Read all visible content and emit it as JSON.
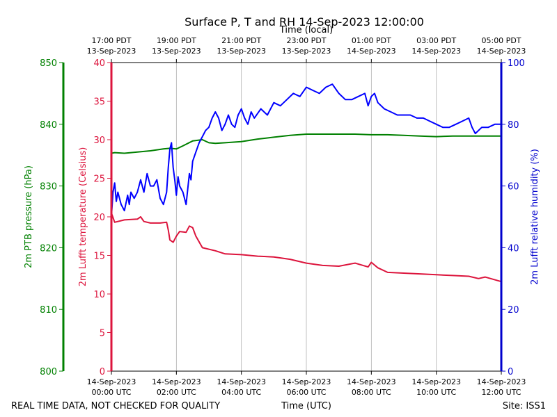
{
  "chart_data": {
    "type": "line",
    "title": "Surface P, T and RH 14-Sep-2023 12:00:00",
    "xlabel_bottom": "Time (UTC)",
    "xlabel_top": "Time (local)",
    "x_range_hours_utc": [
      0,
      12
    ],
    "x_tick_hours": [
      0,
      2,
      4,
      6,
      8,
      10,
      12
    ],
    "bottom_ticks": [
      [
        "14-Sep-2023",
        "00:00 UTC"
      ],
      [
        "14-Sep-2023",
        "02:00 UTC"
      ],
      [
        "14-Sep-2023",
        "04:00 UTC"
      ],
      [
        "14-Sep-2023",
        "06:00 UTC"
      ],
      [
        "14-Sep-2023",
        "08:00 UTC"
      ],
      [
        "14-Sep-2023",
        "10:00 UTC"
      ],
      [
        "14-Sep-2023",
        "12:00 UTC"
      ]
    ],
    "top_ticks": [
      [
        "17:00 PDT",
        "13-Sep-2023"
      ],
      [
        "19:00 PDT",
        "13-Sep-2023"
      ],
      [
        "21:00 PDT",
        "13-Sep-2023"
      ],
      [
        "23:00 PDT",
        "13-Sep-2023"
      ],
      [
        "01:00 PDT",
        "14-Sep-2023"
      ],
      [
        "03:00 PDT",
        "14-Sep-2023"
      ],
      [
        "05:00 PDT",
        "14-Sep-2023"
      ]
    ],
    "axes": {
      "pressure": {
        "label": "2m PTB pressure (hPa)",
        "range": [
          800,
          850
        ],
        "ticks": [
          800,
          810,
          820,
          830,
          840,
          850
        ],
        "color": "#008000"
      },
      "temperature": {
        "label": "2m Lufft temperature (Celsius)",
        "range": [
          0,
          40
        ],
        "ticks": [
          0,
          5,
          10,
          15,
          20,
          25,
          30,
          35,
          40
        ],
        "color": "#dc143c"
      },
      "humidity": {
        "label": "2m Lufft relative humidity (%)",
        "range": [
          0,
          100
        ],
        "ticks": [
          0,
          20,
          40,
          60,
          80,
          100
        ],
        "color": "#0000cd"
      }
    },
    "series": [
      {
        "name": "2m PTB pressure (hPa)",
        "axis": "pressure",
        "color": "#008000",
        "x": [
          0.0,
          0.1,
          0.4,
          0.8,
          1.2,
          1.6,
          1.8,
          2.0,
          2.2,
          2.5,
          2.8,
          3.0,
          3.2,
          3.5,
          4.0,
          4.5,
          5.0,
          5.5,
          6.0,
          6.5,
          7.0,
          7.5,
          8.0,
          8.5,
          9.0,
          9.5,
          10.0,
          10.5,
          11.0,
          11.5,
          12.0
        ],
        "values": [
          835.3,
          835.4,
          835.3,
          835.5,
          835.7,
          836.0,
          836.1,
          836.0,
          836.5,
          837.3,
          837.5,
          837.0,
          836.9,
          837.0,
          837.2,
          837.6,
          837.9,
          838.2,
          838.4,
          838.4,
          838.4,
          838.4,
          838.3,
          838.3,
          838.2,
          838.1,
          838.0,
          838.1,
          838.1,
          838.1,
          838.1
        ]
      },
      {
        "name": "2m Lufft temperature (Celsius)",
        "axis": "temperature",
        "color": "#dc143c",
        "x": [
          0.0,
          0.1,
          0.4,
          0.8,
          0.9,
          1.0,
          1.2,
          1.5,
          1.7,
          1.75,
          1.8,
          1.9,
          2.0,
          2.1,
          2.3,
          2.4,
          2.5,
          2.6,
          2.8,
          3.2,
          3.5,
          4.0,
          4.5,
          5.0,
          5.5,
          6.0,
          6.5,
          7.0,
          7.5,
          7.9,
          8.0,
          8.2,
          8.5,
          9.0,
          9.5,
          10.0,
          10.5,
          11.0,
          11.3,
          11.5,
          12.0
        ],
        "values": [
          20.5,
          19.3,
          19.6,
          19.7,
          20.0,
          19.4,
          19.2,
          19.2,
          19.3,
          18.3,
          17.0,
          16.7,
          17.5,
          18.1,
          18.0,
          18.8,
          18.6,
          17.5,
          16.0,
          15.6,
          15.2,
          15.1,
          14.9,
          14.8,
          14.5,
          14.0,
          13.7,
          13.6,
          14.0,
          13.5,
          14.1,
          13.4,
          12.8,
          12.7,
          12.6,
          12.5,
          12.4,
          12.3,
          12.0,
          12.2,
          11.6
        ]
      },
      {
        "name": "2m Lufft relative humidity (%)",
        "axis": "humidity",
        "color": "#0000ff",
        "x": [
          0.0,
          0.05,
          0.1,
          0.15,
          0.2,
          0.3,
          0.4,
          0.5,
          0.55,
          0.6,
          0.7,
          0.8,
          0.9,
          1.0,
          1.1,
          1.2,
          1.3,
          1.4,
          1.5,
          1.6,
          1.7,
          1.75,
          1.8,
          1.85,
          1.9,
          1.95,
          2.0,
          2.05,
          2.1,
          2.2,
          2.3,
          2.4,
          2.45,
          2.5,
          2.6,
          2.7,
          2.8,
          2.9,
          3.0,
          3.1,
          3.2,
          3.3,
          3.4,
          3.5,
          3.6,
          3.7,
          3.8,
          3.9,
          4.0,
          4.1,
          4.2,
          4.3,
          4.4,
          4.6,
          4.8,
          5.0,
          5.2,
          5.4,
          5.6,
          5.8,
          6.0,
          6.2,
          6.4,
          6.6,
          6.8,
          7.0,
          7.2,
          7.4,
          7.6,
          7.8,
          7.9,
          8.0,
          8.1,
          8.2,
          8.4,
          8.6,
          8.8,
          9.0,
          9.2,
          9.4,
          9.6,
          9.8,
          10.0,
          10.2,
          10.4,
          10.6,
          10.8,
          11.0,
          11.1,
          11.2,
          11.4,
          11.6,
          11.8,
          12.0
        ],
        "values": [
          50,
          58,
          61,
          55,
          58,
          54,
          52,
          57,
          54,
          58,
          56,
          58,
          62,
          58,
          64,
          60,
          60,
          62,
          56,
          54,
          58,
          66,
          72,
          74,
          66,
          62,
          57,
          63,
          60,
          58,
          54,
          64,
          62,
          68,
          71,
          74,
          76,
          78,
          79,
          82,
          84,
          82,
          78,
          80,
          83,
          80,
          79,
          83,
          85,
          82,
          80,
          84,
          82,
          85,
          83,
          87,
          86,
          88,
          90,
          89,
          92,
          91,
          90,
          92,
          93,
          90,
          88,
          88,
          89,
          90,
          86,
          89,
          90,
          87,
          85,
          84,
          83,
          83,
          83,
          82,
          82,
          81,
          80,
          79,
          79,
          80,
          81,
          82,
          79,
          77,
          79,
          79,
          80,
          80
        ]
      }
    ]
  },
  "footer": {
    "left_note": "REAL TIME DATA, NOT CHECKED FOR QUALITY",
    "site": "Site: ISS1"
  }
}
